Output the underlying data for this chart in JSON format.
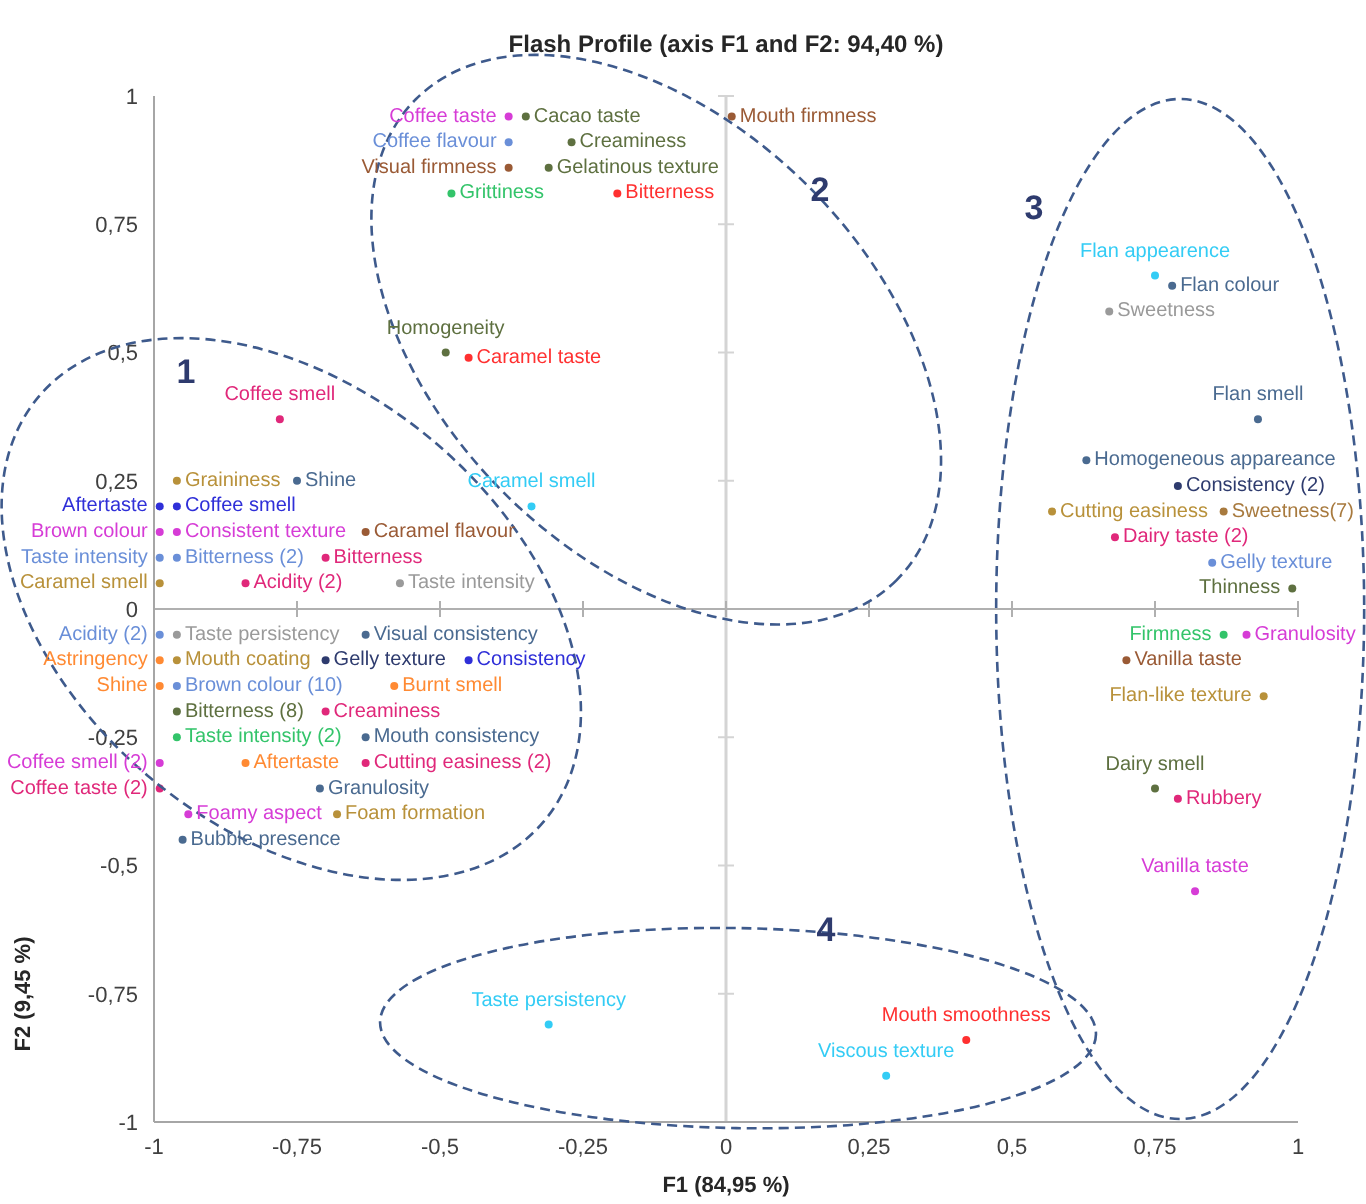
{
  "chart_data": {
    "type": "scatter",
    "title": "Flash Profile (axis F1 and F2: 94,40 %)",
    "xlabel": "F1 (84,95 %)",
    "ylabel": "F2 (9,45 %)",
    "xlim": [
      -1,
      1
    ],
    "ylim": [
      -1,
      1
    ],
    "xticks": [
      -1,
      {
        "value": -0.75,
        "label": "-0,75"
      },
      {
        "value": -0.5,
        "label": "-0,5"
      },
      {
        "value": -0.25,
        "label": "-0,25"
      },
      0,
      {
        "value": 0.25,
        "label": "0,25"
      },
      {
        "value": 0.5,
        "label": "0,5"
      },
      {
        "value": 0.75,
        "label": "0,75"
      },
      1
    ],
    "yticks": [
      -1,
      {
        "value": -0.75,
        "label": "-0,75"
      },
      {
        "value": -0.5,
        "label": "-0,5"
      },
      {
        "value": -0.25,
        "label": "-0,25"
      },
      0,
      {
        "value": 0.25,
        "label": "0,25"
      },
      {
        "value": 0.5,
        "label": "0,5"
      },
      {
        "value": 0.75,
        "label": "0,75"
      },
      1
    ],
    "marker": "circle",
    "ref_lines": [
      {
        "axis": "x",
        "value": 0,
        "color": "#d4d4d4"
      },
      {
        "axis": "y",
        "value": 0,
        "color": "#b0b0b0"
      }
    ],
    "annotations": [
      "1",
      "2",
      "3",
      "4"
    ],
    "series": [
      {
        "name": "Coffee smell",
        "color": "#e0287a",
        "x": [
          -0.78
        ],
        "values": [
          0.37
        ]
      },
      {
        "name": "Graininess",
        "color": "#b8913a",
        "x": [
          -0.96
        ],
        "values": [
          0.25
        ]
      },
      {
        "name": "Coffee smell",
        "color": "#2f2fd8",
        "x": [
          -0.96
        ],
        "values": [
          0.2
        ]
      },
      {
        "name": "Shine",
        "color": "#4a6a90",
        "x": [
          -0.75
        ],
        "values": [
          0.25
        ]
      },
      {
        "name": "Aftertaste",
        "color": "#2f2fd8",
        "x": [
          -0.99
        ],
        "values": [
          0.2
        ]
      },
      {
        "name": "Consistent texture",
        "color": "#d63cd6",
        "x": [
          -0.96
        ],
        "values": [
          0.15
        ]
      },
      {
        "name": "Caramel flavour",
        "color": "#9a5a35",
        "x": [
          -0.63
        ],
        "values": [
          0.15
        ]
      },
      {
        "name": "Brown colour",
        "color": "#d63cd6",
        "x": [
          -0.99
        ],
        "values": [
          0.15
        ]
      },
      {
        "name": "Bitterness (2)",
        "color": "#6a8fd8",
        "x": [
          -0.96
        ],
        "values": [
          0.1
        ]
      },
      {
        "name": "Bitterness",
        "color": "#e0287a",
        "x": [
          -0.7
        ],
        "values": [
          0.1
        ]
      },
      {
        "name": "Taste intensity",
        "color": "#6a8fd8",
        "x": [
          -0.99
        ],
        "values": [
          0.1
        ]
      },
      {
        "name": "Acidity (2)",
        "color": "#e0287a",
        "x": [
          -0.84
        ],
        "values": [
          0.05
        ]
      },
      {
        "name": "Taste intensity",
        "color": "#9a9a9a",
        "x": [
          -0.57
        ],
        "values": [
          0.05
        ]
      },
      {
        "name": "Caramel smell",
        "color": "#b8913a",
        "x": [
          -0.99
        ],
        "values": [
          0.05
        ]
      },
      {
        "name": "Taste persistency",
        "color": "#9a9a9a",
        "x": [
          -0.96
        ],
        "values": [
          -0.05
        ]
      },
      {
        "name": "Acidity (2)",
        "color": "#6a8fd8",
        "x": [
          -0.99
        ],
        "values": [
          -0.05
        ]
      },
      {
        "name": "Mouth coating",
        "color": "#b8913a",
        "x": [
          -0.96
        ],
        "values": [
          -0.1
        ]
      },
      {
        "name": "Visual consistency",
        "color": "#4a6a90",
        "x": [
          -0.63
        ],
        "values": [
          -0.05
        ]
      },
      {
        "name": "Consistency",
        "color": "#2f2fd8",
        "x": [
          -0.45
        ],
        "values": [
          -0.1
        ]
      },
      {
        "name": "Gelly texture",
        "color": "#2e3b6e",
        "x": [
          -0.7
        ],
        "values": [
          -0.1
        ]
      },
      {
        "name": "Brown colour (10)",
        "color": "#6a8fd8",
        "x": [
          -0.96
        ],
        "values": [
          -0.15
        ]
      },
      {
        "name": "Creaminess",
        "color": "#e0287a",
        "x": [
          -0.7
        ],
        "values": [
          -0.2
        ]
      },
      {
        "name": "Burnt smell",
        "color": "#ff8a33",
        "x": [
          -0.58
        ],
        "values": [
          -0.15
        ]
      },
      {
        "name": "Astringency",
        "color": "#ff8a33",
        "x": [
          -0.99
        ],
        "values": [
          -0.1
        ]
      },
      {
        "name": "Shine",
        "color": "#ff8a33",
        "x": [
          -0.99
        ],
        "values": [
          -0.15
        ]
      },
      {
        "name": "Bitterness (8)",
        "color": "#5e7040",
        "x": [
          -0.96
        ],
        "values": [
          -0.2
        ]
      },
      {
        "name": "Mouth consistency",
        "color": "#4a6a90",
        "x": [
          -0.63
        ],
        "values": [
          -0.25
        ]
      },
      {
        "name": "Taste intensity (2)",
        "color": "#33c46a",
        "x": [
          -0.96
        ],
        "values": [
          -0.25
        ]
      },
      {
        "name": "Aftertaste",
        "color": "#ff8a33",
        "x": [
          -0.84
        ],
        "values": [
          -0.3
        ]
      },
      {
        "name": "Cutting easiness (2)",
        "color": "#e0287a",
        "x": [
          -0.63
        ],
        "values": [
          -0.3
        ]
      },
      {
        "name": "Coffee smell (2)",
        "color": "#d63cd6",
        "x": [
          -0.99
        ],
        "values": [
          -0.3
        ]
      },
      {
        "name": "Coffee taste (2)",
        "color": "#e0287a",
        "x": [
          -0.99
        ],
        "values": [
          -0.35
        ]
      },
      {
        "name": "Granulosity",
        "color": "#4a6a90",
        "x": [
          -0.71
        ],
        "values": [
          -0.35
        ]
      },
      {
        "name": "Foam formation",
        "color": "#b8913a",
        "x": [
          -0.68
        ],
        "values": [
          -0.4
        ]
      },
      {
        "name": "Foamy aspect",
        "color": "#d63cd6",
        "x": [
          -0.94
        ],
        "values": [
          -0.4
        ]
      },
      {
        "name": "Bubble presence",
        "color": "#4a6a90",
        "x": [
          -0.95
        ],
        "values": [
          -0.45
        ]
      },
      {
        "name": "Coffee taste",
        "color": "#d63cd6",
        "x": [
          -0.38
        ],
        "values": [
          0.96
        ]
      },
      {
        "name": "Cacao taste",
        "color": "#5e7040",
        "x": [
          -0.35
        ],
        "values": [
          0.96
        ]
      },
      {
        "name": "Mouth firmness",
        "color": "#9a5a35",
        "x": [
          0.01
        ],
        "values": [
          0.96
        ]
      },
      {
        "name": "Creaminess",
        "color": "#5e7040",
        "x": [
          -0.27
        ],
        "values": [
          0.91
        ]
      },
      {
        "name": "Coffee flavour",
        "color": "#6a8fd8",
        "x": [
          -0.38
        ],
        "values": [
          0.91
        ]
      },
      {
        "name": "Gelatinous texture",
        "color": "#5e7040",
        "x": [
          -0.31
        ],
        "values": [
          0.86
        ]
      },
      {
        "name": "Bitterness",
        "color": "#ff3030",
        "x": [
          -0.19
        ],
        "values": [
          0.81
        ]
      },
      {
        "name": "Visual firmness",
        "color": "#9a5a35",
        "x": [
          -0.38
        ],
        "values": [
          0.86
        ]
      },
      {
        "name": "Grittiness",
        "color": "#33c46a",
        "x": [
          -0.48
        ],
        "values": [
          0.81
        ]
      },
      {
        "name": "Homogeneity",
        "color": "#5e7040",
        "x": [
          -0.49
        ],
        "values": [
          0.5
        ]
      },
      {
        "name": "Caramel taste",
        "color": "#ff3030",
        "x": [
          -0.45
        ],
        "values": [
          0.49
        ]
      },
      {
        "name": "Caramel smell",
        "color": "#33ccf5",
        "x": [
          -0.34
        ],
        "values": [
          0.2
        ]
      },
      {
        "name": "Flan appearence",
        "color": "#33ccf5",
        "x": [
          0.75
        ],
        "values": [
          0.65
        ]
      },
      {
        "name": "Flan colour",
        "color": "#4a6a90",
        "x": [
          0.78
        ],
        "values": [
          0.63
        ]
      },
      {
        "name": "Sweetness",
        "color": "#9a9a9a",
        "x": [
          0.67
        ],
        "values": [
          0.58
        ]
      },
      {
        "name": "Flan smell",
        "color": "#4a6a90",
        "x": [
          0.93
        ],
        "values": [
          0.37
        ]
      },
      {
        "name": "Homogeneous appareance",
        "color": "#4a6a90",
        "x": [
          0.63
        ],
        "values": [
          0.29
        ]
      },
      {
        "name": "Consistency (2)",
        "color": "#2e3b6e",
        "x": [
          0.79
        ],
        "values": [
          0.24
        ]
      },
      {
        "name": "Cutting easiness",
        "color": "#b8913a",
        "x": [
          0.57
        ],
        "values": [
          0.19
        ]
      },
      {
        "name": "Sweetness(7)",
        "color": "#a87a3e",
        "x": [
          0.87
        ],
        "values": [
          0.19
        ]
      },
      {
        "name": "Dairy taste (2)",
        "color": "#e0287a",
        "x": [
          0.68
        ],
        "values": [
          0.14
        ]
      },
      {
        "name": "Gelly texture",
        "color": "#6a8fd8",
        "x": [
          0.85
        ],
        "values": [
          0.09
        ]
      },
      {
        "name": "Thinness",
        "color": "#5e7040",
        "x": [
          0.99
        ],
        "values": [
          0.04
        ]
      },
      {
        "name": "Granulosity",
        "color": "#d63cd6",
        "x": [
          0.91
        ],
        "values": [
          -0.05
        ]
      },
      {
        "name": "Firmness",
        "color": "#33c46a",
        "x": [
          0.87
        ],
        "values": [
          -0.05
        ]
      },
      {
        "name": "Vanilla taste",
        "color": "#9a5a35",
        "x": [
          0.7
        ],
        "values": [
          -0.1
        ]
      },
      {
        "name": "Flan-like texture",
        "color": "#b8913a",
        "x": [
          0.94
        ],
        "values": [
          -0.17
        ]
      },
      {
        "name": "Dairy smell",
        "color": "#5e7040",
        "x": [
          0.75
        ],
        "values": [
          -0.35
        ]
      },
      {
        "name": "Rubbery",
        "color": "#e0287a",
        "x": [
          0.79
        ],
        "values": [
          -0.37
        ]
      },
      {
        "name": "Vanilla taste",
        "color": "#d63cd6",
        "x": [
          0.82
        ],
        "values": [
          -0.55
        ]
      },
      {
        "name": "Taste persistency",
        "color": "#33ccf5",
        "x": [
          -0.31
        ],
        "values": [
          -0.81
        ]
      },
      {
        "name": "Mouth smoothness",
        "color": "#ff3030",
        "x": [
          0.42
        ],
        "values": [
          -0.84
        ]
      },
      {
        "name": "Viscous texture",
        "color": "#33ccf5",
        "x": [
          0.28
        ],
        "values": [
          -0.91
        ]
      }
    ]
  }
}
